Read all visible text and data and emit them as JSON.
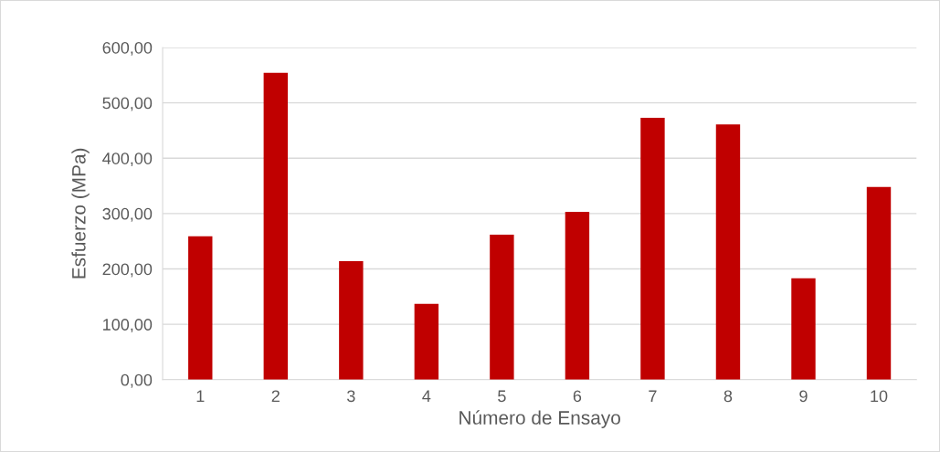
{
  "chart_data": {
    "type": "bar",
    "xlabel": "Número de Ensayo",
    "ylabel": "Esfuerzo (MPa)",
    "categories": [
      "1",
      "2",
      "3",
      "4",
      "5",
      "6",
      "7",
      "8",
      "9",
      "10"
    ],
    "values": [
      259,
      554,
      214,
      137,
      262,
      303,
      473,
      461,
      183,
      348
    ],
    "color": "#c00000",
    "ylim": [
      0,
      600
    ],
    "yticks": [
      {
        "value": 0,
        "label": "0,00"
      },
      {
        "value": 100,
        "label": "100,00"
      },
      {
        "value": 200,
        "label": "200,00"
      },
      {
        "value": 300,
        "label": "300,00"
      },
      {
        "value": 400,
        "label": "400,00"
      },
      {
        "value": 500,
        "label": "500,00"
      },
      {
        "value": 600,
        "label": "600,00"
      }
    ],
    "grid": "y"
  }
}
